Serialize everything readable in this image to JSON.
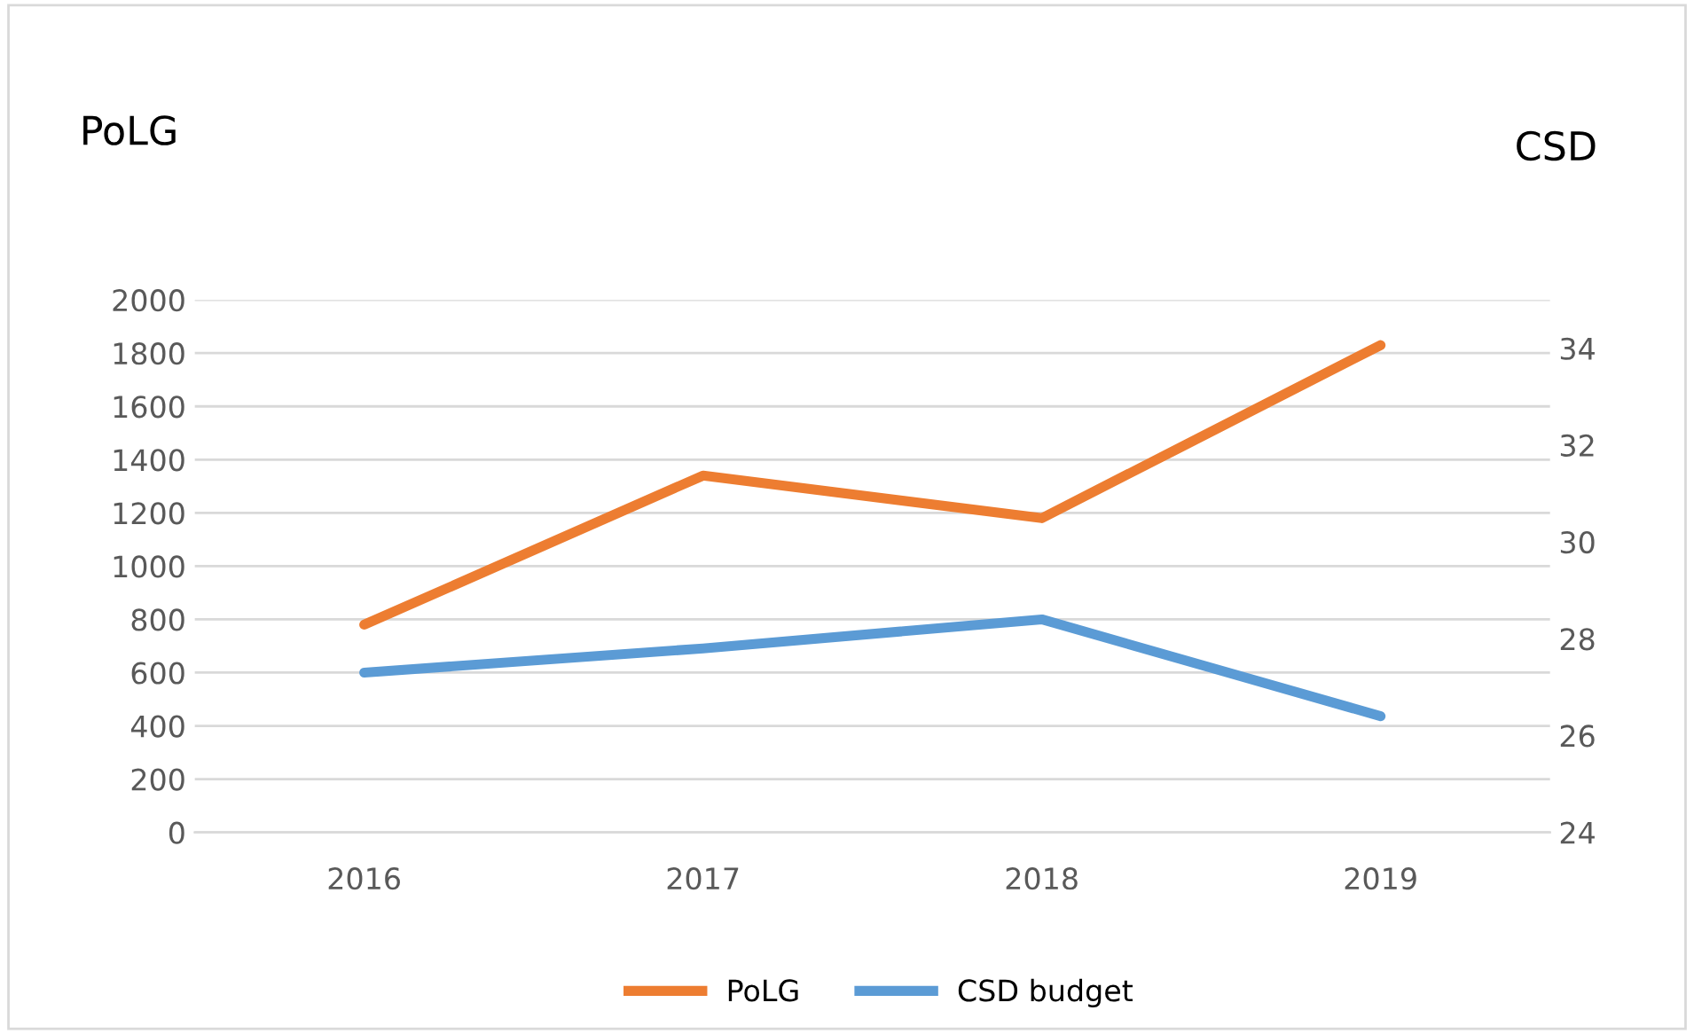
{
  "chart_data": {
    "type": "line",
    "ylabel": "PoLG",
    "y2label": "CSD",
    "categories": [
      "2016",
      "2017",
      "2018",
      "2019"
    ],
    "series": [
      {
        "name": "PoLG",
        "color": "#ed7d31",
        "values": [
          780,
          1340,
          1180,
          1830
        ]
      },
      {
        "name": "CSD budget",
        "color": "#5b9bd5",
        "values": [
          27.3,
          27.8,
          28.4,
          26.4
        ],
        "axis": "y2"
      }
    ],
    "ylim": [
      0,
      2000
    ],
    "yticks": [
      0,
      200,
      400,
      600,
      800,
      1000,
      1200,
      1400,
      1600,
      1800,
      2000
    ],
    "y2lim": [
      24,
      35
    ],
    "y2ticks": [
      24,
      26,
      28,
      30,
      32,
      34
    ],
    "grid": "y",
    "legend": "bottom",
    "marker": "none",
    "line_style": "solid"
  }
}
